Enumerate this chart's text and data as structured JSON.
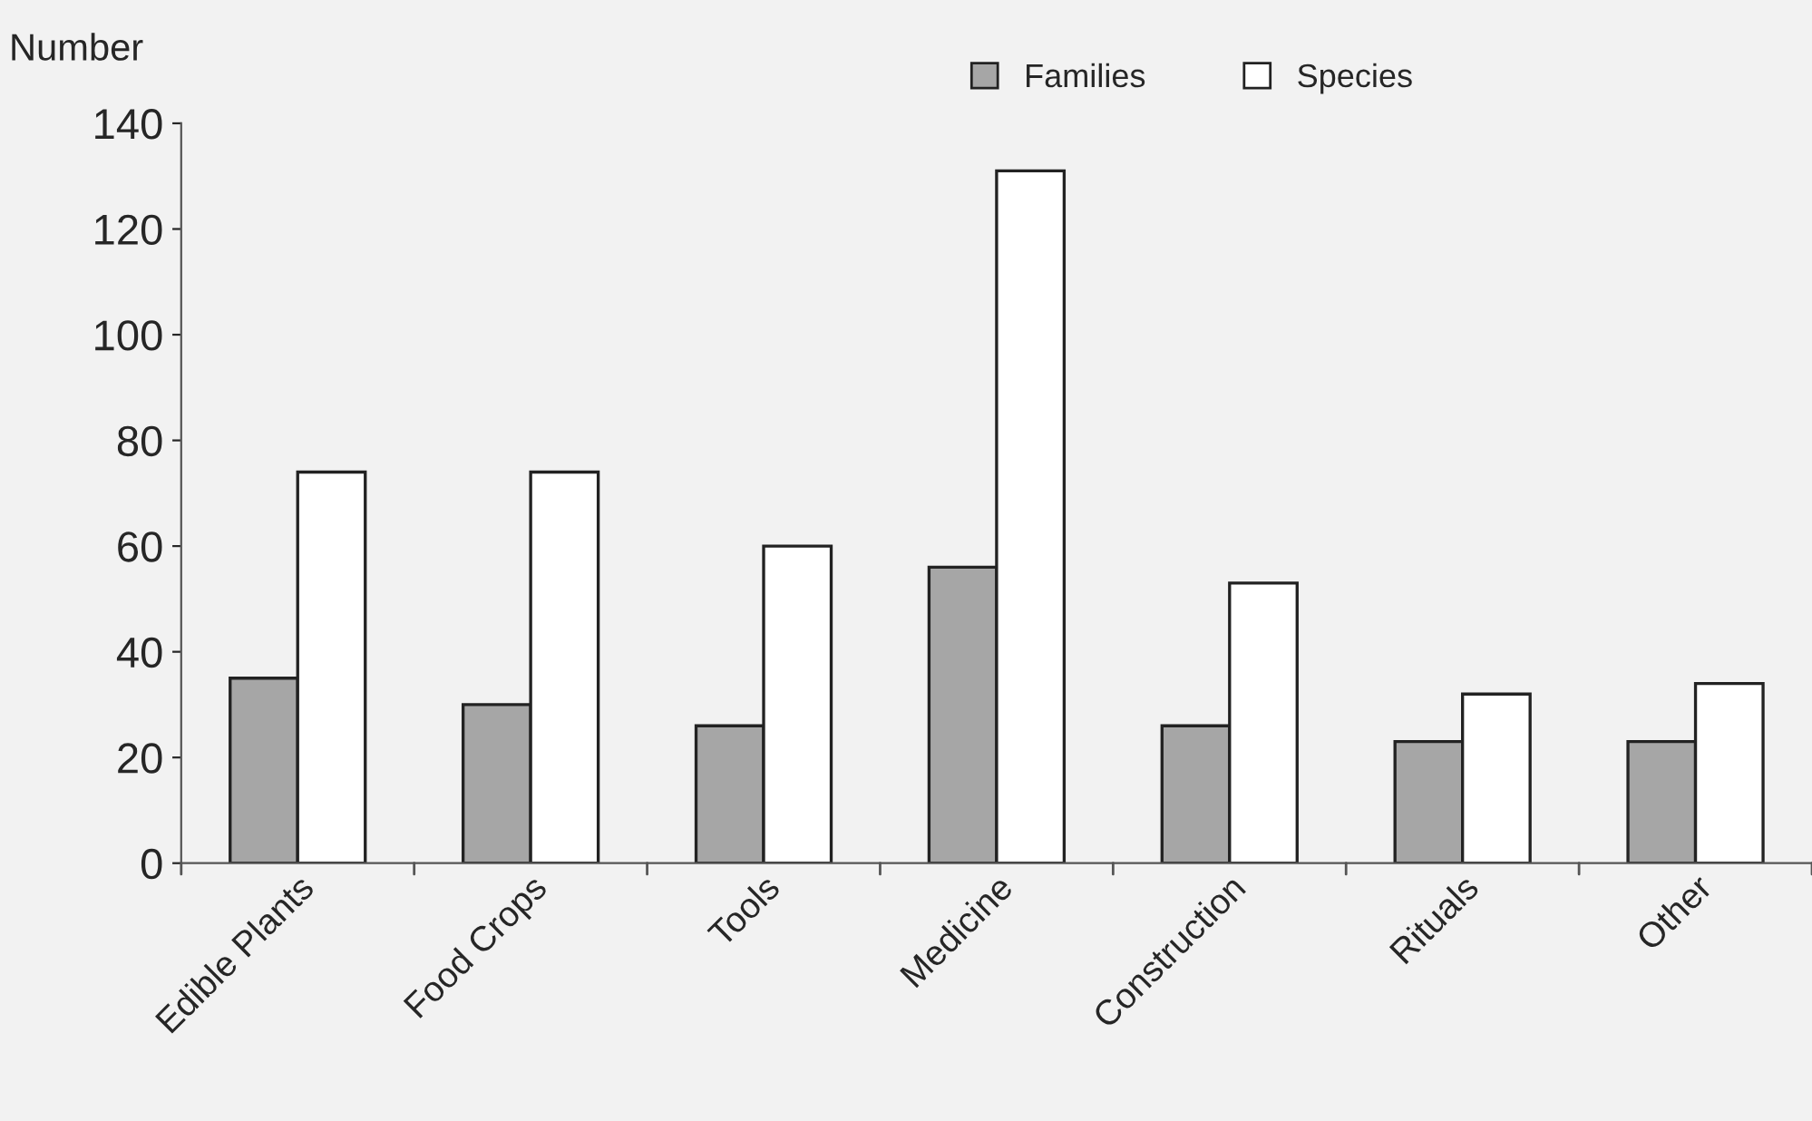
{
  "chart_data": {
    "type": "bar",
    "ylabel": "Number",
    "categories": [
      "Edible Plants",
      "Food Crops",
      "Tools",
      "Medicine",
      "Construction",
      "Rituals",
      "Other"
    ],
    "series": [
      {
        "name": "Families",
        "color": "#a6a6a6",
        "values": [
          35,
          30,
          26,
          56,
          26,
          23,
          23
        ]
      },
      {
        "name": "Species",
        "color": "#ffffff",
        "values": [
          74,
          74,
          60,
          131,
          53,
          32,
          34
        ]
      }
    ],
    "ylim": [
      0,
      140
    ],
    "yticks": [
      0,
      20,
      40,
      60,
      80,
      100,
      120,
      140
    ],
    "grid": false,
    "legend": "top"
  }
}
